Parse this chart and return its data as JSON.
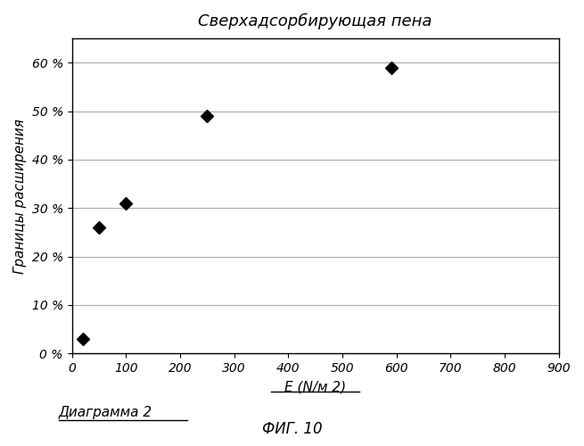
{
  "title": "Сверхадсорбирующая пена",
  "xlabel": "E (N/м 2)",
  "ylabel": "Границы расширения",
  "x_data": [
    20,
    50,
    100,
    250,
    590
  ],
  "y_data": [
    3,
    26,
    31,
    49,
    59
  ],
  "xlim": [
    0,
    900
  ],
  "ylim": [
    0,
    65
  ],
  "xticks": [
    0,
    100,
    200,
    300,
    400,
    500,
    600,
    700,
    800,
    900
  ],
  "ytick_labels": [
    "0 %",
    "10 %",
    "20 %",
    "30 %",
    "40 %",
    "50 %",
    "60 %"
  ],
  "ytick_values": [
    0,
    10,
    20,
    30,
    40,
    50,
    60
  ],
  "marker": "D",
  "marker_color": "#000000",
  "marker_size": 7,
  "bg_color": "#ffffff",
  "grid_color": "#aaaaaa",
  "caption_diagram": "Диаграмма 2",
  "caption_fig": "ФИГ. 10",
  "title_fontsize": 13,
  "label_fontsize": 11,
  "tick_fontsize": 10,
  "caption_fontsize": 11,
  "fig_fontsize": 12
}
